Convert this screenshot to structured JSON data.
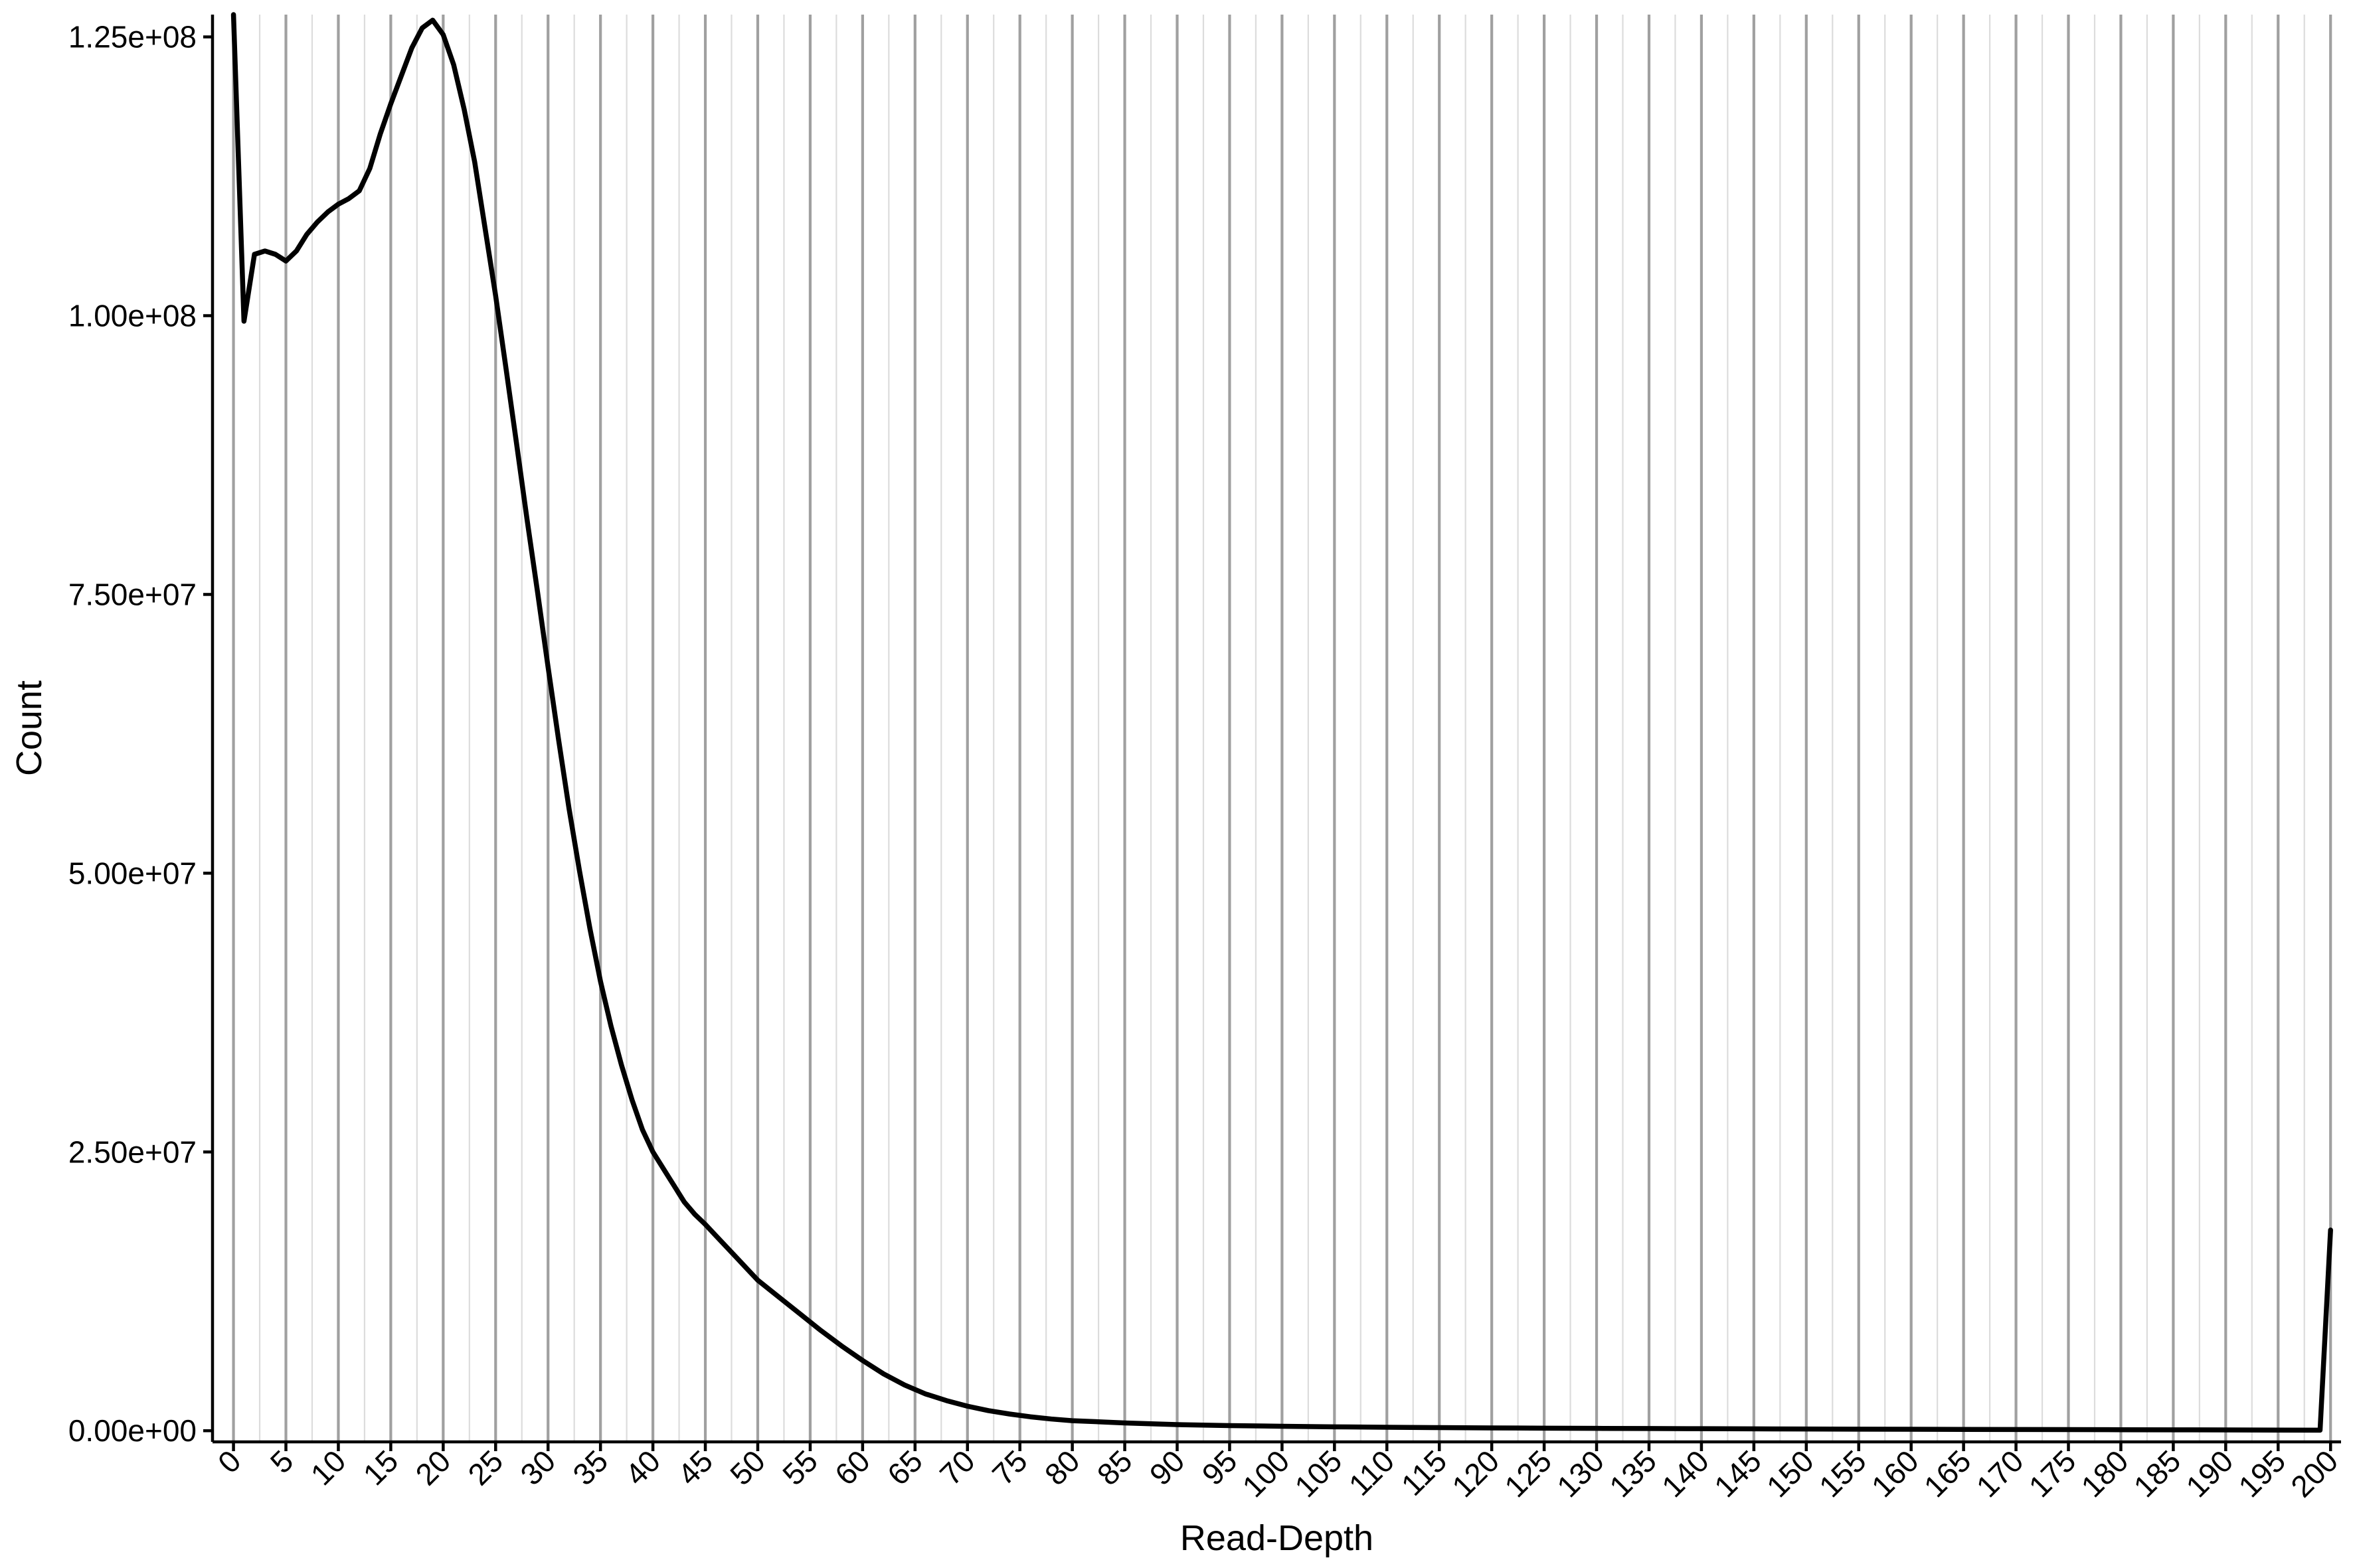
{
  "chart_data": {
    "type": "line",
    "xlabel": "Read-Depth",
    "ylabel": "Count",
    "xlim": [
      -2,
      201
    ],
    "ylim": [
      -1000000,
      127000000
    ],
    "x_ticks": [
      0,
      5,
      10,
      15,
      20,
      25,
      30,
      35,
      40,
      45,
      50,
      55,
      60,
      65,
      70,
      75,
      80,
      85,
      90,
      95,
      100,
      105,
      110,
      115,
      120,
      125,
      130,
      135,
      140,
      145,
      150,
      155,
      160,
      165,
      170,
      175,
      180,
      185,
      190,
      195,
      200
    ],
    "x_minor_ticks": [
      2.5,
      7.5,
      12.5,
      17.5,
      22.5,
      27.5,
      32.5,
      37.5,
      42.5,
      47.5,
      52.5,
      57.5,
      62.5,
      67.5,
      72.5,
      77.5,
      82.5,
      87.5,
      92.5,
      97.5,
      102.5,
      107.5,
      112.5,
      117.5,
      122.5,
      127.5,
      132.5,
      137.5,
      142.5,
      147.5,
      152.5,
      157.5,
      162.5,
      167.5,
      172.5,
      177.5,
      182.5,
      187.5,
      192.5,
      197.5
    ],
    "y_ticks": [
      0,
      25000000,
      50000000,
      75000000,
      100000000,
      125000000
    ],
    "y_tick_labels": [
      "0.00e+00",
      "2.50e+07",
      "5.00e+07",
      "7.50e+07",
      "1.00e+08",
      "1.25e+08"
    ],
    "grid": "vertical",
    "series": [
      {
        "color": "#000000",
        "x": [
          0,
          1,
          2,
          3,
          4,
          5,
          6,
          7,
          8,
          9,
          10,
          11,
          12,
          13,
          14,
          15,
          16,
          17,
          18,
          19,
          20,
          21,
          22,
          23,
          24,
          25,
          26,
          27,
          28,
          29,
          30,
          31,
          32,
          33,
          34,
          35,
          36,
          37,
          38,
          39,
          40,
          41,
          42,
          43,
          44,
          45,
          46,
          47,
          48,
          49,
          50,
          52,
          54,
          56,
          58,
          60,
          62,
          64,
          66,
          68,
          70,
          72,
          74,
          76,
          78,
          80,
          85,
          90,
          95,
          100,
          105,
          110,
          115,
          120,
          125,
          130,
          135,
          140,
          145,
          150,
          155,
          160,
          165,
          170,
          175,
          180,
          185,
          190,
          195,
          199,
          200
        ],
        "values": [
          127000000,
          99500000,
          105500000,
          105800000,
          105500000,
          104900000,
          105800000,
          107300000,
          108400000,
          109300000,
          110000000,
          110500000,
          111200000,
          113200000,
          116300000,
          119000000,
          121500000,
          124000000,
          125800000,
          126500000,
          125200000,
          122500000,
          118500000,
          113800000,
          107800000,
          101800000,
          95200000,
          88500000,
          81700000,
          75200000,
          68500000,
          62000000,
          55800000,
          50200000,
          45000000,
          40300000,
          36300000,
          32800000,
          29700000,
          27000000,
          25000000,
          23500000,
          22000000,
          20500000,
          19400000,
          18500000,
          17500000,
          16500000,
          15500000,
          14500000,
          13500000,
          12000000,
          10500000,
          9000000,
          7600000,
          6300000,
          5100000,
          4100000,
          3300000,
          2700000,
          2200000,
          1800000,
          1500000,
          1250000,
          1050000,
          900000,
          700000,
          550000,
          460000,
          400000,
          350000,
          310000,
          280000,
          250000,
          230000,
          210000,
          195000,
          180000,
          165000,
          150000,
          140000,
          130000,
          120000,
          110000,
          100000,
          90000,
          80000,
          70000,
          60000,
          50000,
          18000000
        ]
      }
    ]
  }
}
